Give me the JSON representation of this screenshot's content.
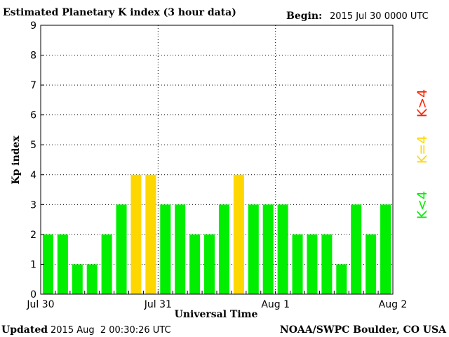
{
  "header": {
    "title": "Estimated Planetary K index (3 hour data)",
    "begin_label": "Begin:",
    "begin_value": "2015 Jul 30 0000 UTC"
  },
  "footer": {
    "updated_label": "Updated",
    "updated_value": "2015 Aug  2 00:30:26 UTC",
    "credit": "NOAA/SWPC Boulder, CO USA"
  },
  "legend": {
    "low": "K<4",
    "equal": "K=4",
    "high": "K>4"
  },
  "colors": {
    "low": "#00ee00",
    "equal": "#ffd700",
    "high": "#ff2200",
    "grid": "#000000"
  },
  "chart_data": {
    "type": "bar",
    "title": "Estimated Planetary K index (3 hour data)",
    "xlabel": "Universal Time",
    "ylabel": "Kp index",
    "ylim": [
      0,
      9
    ],
    "yticks": [
      0,
      1,
      2,
      3,
      4,
      5,
      6,
      7,
      8,
      9
    ],
    "xticks": [
      "Jul 30",
      "Jul 31",
      "Aug 1",
      "Aug 2"
    ],
    "interval_hours": 3,
    "values": [
      2,
      2,
      1,
      1,
      2,
      3,
      4,
      4,
      3,
      3,
      2,
      2,
      3,
      4,
      3,
      3,
      3,
      2,
      2,
      2,
      1,
      3,
      2,
      3
    ],
    "grid": true
  }
}
